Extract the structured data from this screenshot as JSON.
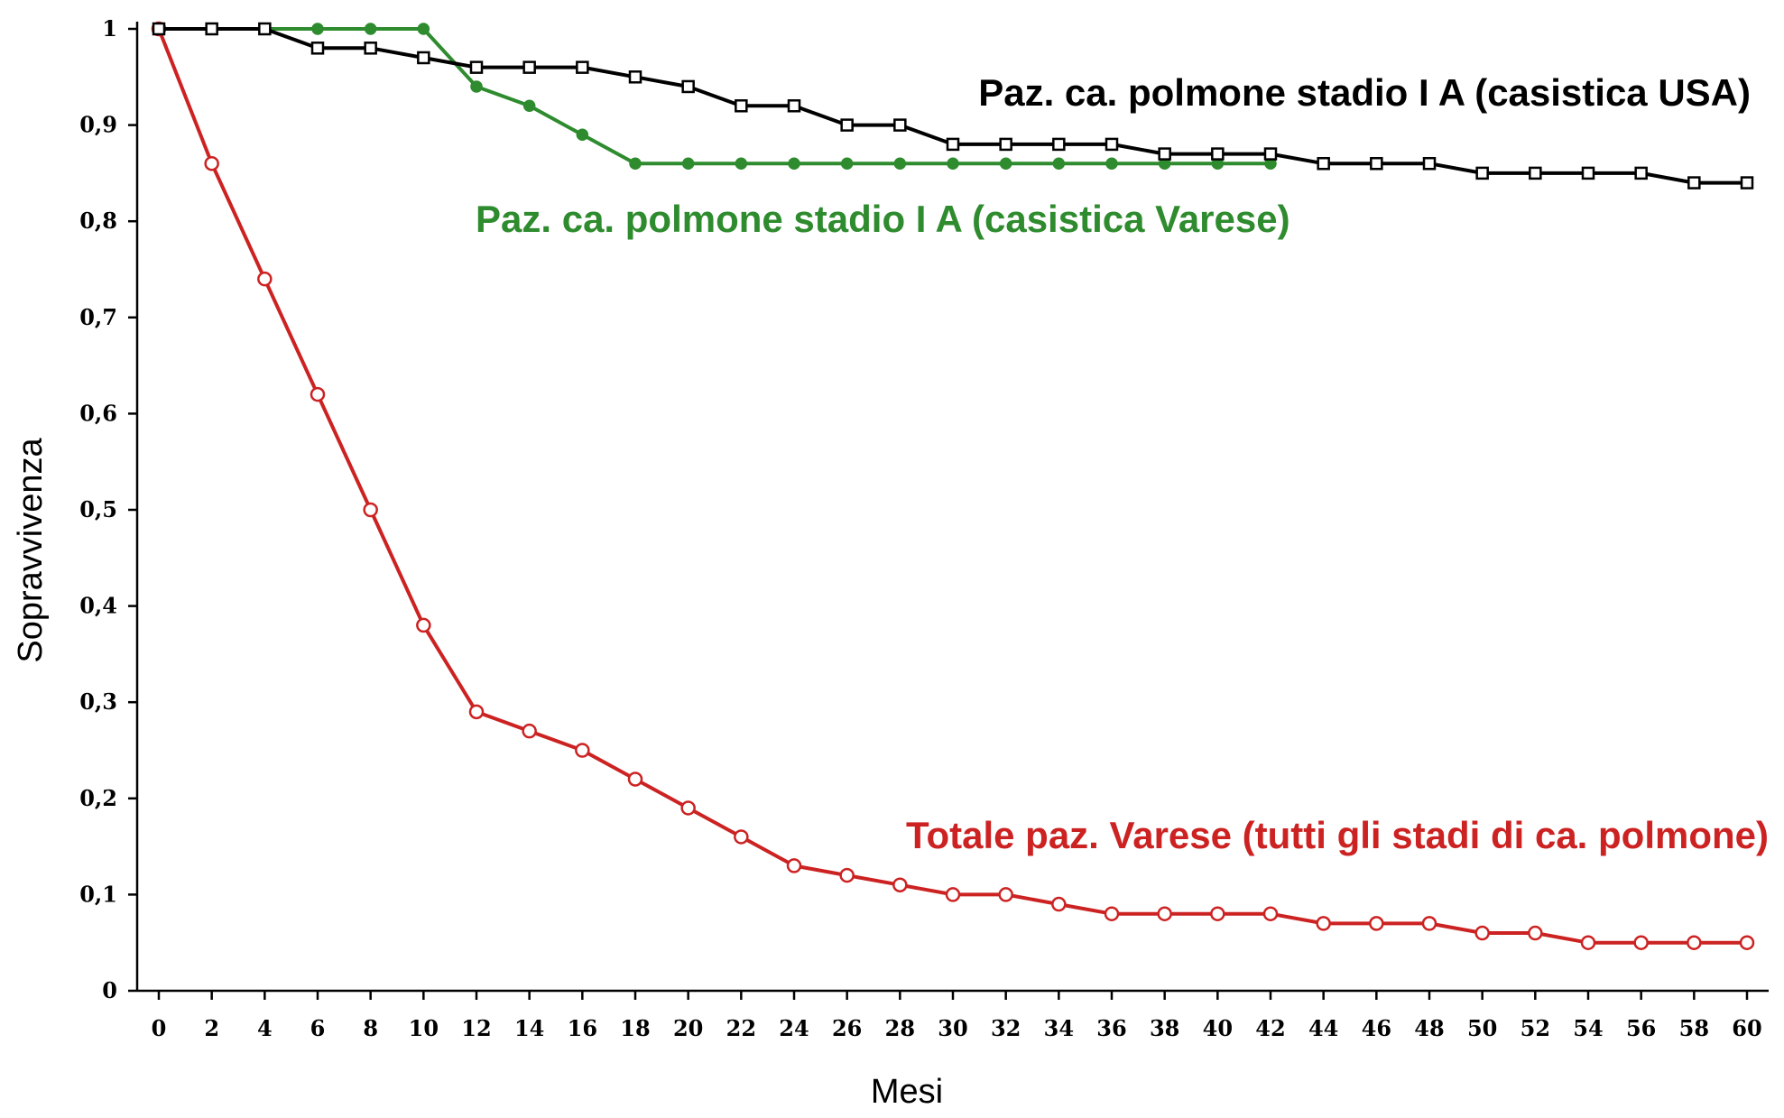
{
  "chart_data": {
    "type": "line",
    "title": "",
    "xlabel": "Mesi",
    "ylabel": "Sopravvivenza",
    "xlim": [
      0,
      60
    ],
    "ylim": [
      0,
      1
    ],
    "grid": false,
    "x_ticks": [
      "0",
      "2",
      "4",
      "6",
      "8",
      "10",
      "12",
      "14",
      "16",
      "18",
      "20",
      "22",
      "24",
      "26",
      "28",
      "30",
      "32",
      "34",
      "36",
      "38",
      "40",
      "42",
      "44",
      "46",
      "48",
      "50",
      "52",
      "54",
      "56",
      "58",
      "60"
    ],
    "y_ticks": [
      "0",
      "0,1",
      "0,2",
      "0,3",
      "0,4",
      "0,5",
      "0,6",
      "0,7",
      "0,8",
      "0,9",
      "1"
    ],
    "series": [
      {
        "name": "Paz. ca. polmone stadio I A (casistica USA)",
        "color": "#000000",
        "marker": "square",
        "x": [
          0,
          2,
          4,
          6,
          8,
          10,
          12,
          14,
          16,
          18,
          20,
          22,
          24,
          26,
          28,
          30,
          32,
          34,
          36,
          38,
          40,
          42,
          44,
          46,
          48,
          50,
          52,
          54,
          56,
          58,
          60
        ],
        "y": [
          1.0,
          1.0,
          1.0,
          0.98,
          0.98,
          0.97,
          0.96,
          0.96,
          0.96,
          0.95,
          0.94,
          0.92,
          0.92,
          0.9,
          0.9,
          0.88,
          0.88,
          0.88,
          0.88,
          0.87,
          0.87,
          0.87,
          0.86,
          0.86,
          0.86,
          0.85,
          0.85,
          0.85,
          0.85,
          0.84,
          0.84
        ]
      },
      {
        "name": "Paz. ca. polmone stadio I A (casistica Varese)",
        "color": "#2e8b2e",
        "marker": "diamond",
        "x": [
          0,
          2,
          4,
          6,
          8,
          10,
          12,
          14,
          16,
          18,
          20,
          22,
          24,
          26,
          28,
          30,
          32,
          34,
          36,
          38,
          40,
          42
        ],
        "y": [
          1.0,
          1.0,
          1.0,
          1.0,
          1.0,
          1.0,
          0.94,
          0.92,
          0.89,
          0.86,
          0.86,
          0.86,
          0.86,
          0.86,
          0.86,
          0.86,
          0.86,
          0.86,
          0.86,
          0.86,
          0.86,
          0.86
        ]
      },
      {
        "name": "Totale paz. Varese (tutti gli stadi di ca. polmone)",
        "color": "#cc2222",
        "marker": "circle",
        "x": [
          0,
          2,
          4,
          6,
          8,
          10,
          12,
          14,
          16,
          18,
          20,
          22,
          24,
          26,
          28,
          30,
          32,
          34,
          36,
          38,
          40,
          42,
          44,
          46,
          48,
          50,
          52,
          54,
          56,
          58,
          60
        ],
        "y": [
          1.0,
          0.86,
          0.74,
          0.62,
          0.5,
          0.38,
          0.29,
          0.27,
          0.25,
          0.22,
          0.19,
          0.16,
          0.13,
          0.12,
          0.11,
          0.1,
          0.1,
          0.09,
          0.08,
          0.08,
          0.08,
          0.08,
          0.07,
          0.07,
          0.07,
          0.06,
          0.06,
          0.05,
          0.05,
          0.05,
          0.05
        ]
      }
    ],
    "annotations": [
      {
        "text": "Paz. ca. polmone stadio I A (casistica USA)",
        "color": "#000000"
      },
      {
        "text": "Paz. ca. polmone stadio I A (casistica Varese)",
        "color": "#2e8b2e"
      },
      {
        "text": "Totale paz. Varese (tutti gli stadi di ca. polmone)",
        "color": "#cc2222"
      }
    ]
  }
}
